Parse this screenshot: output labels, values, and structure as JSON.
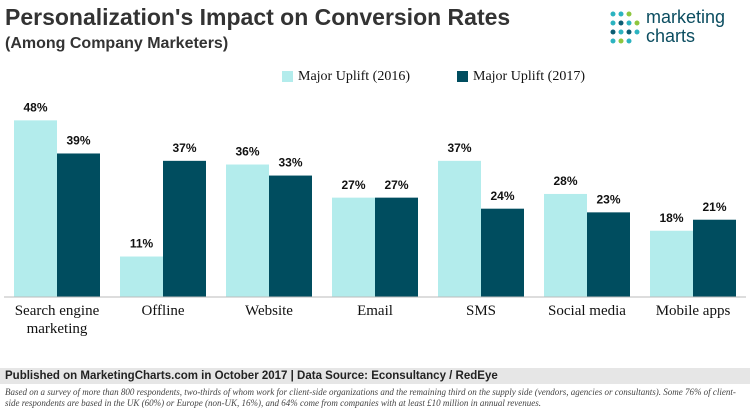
{
  "chart_data": {
    "type": "bar",
    "title": "Personalization's Impact on Conversion Rates",
    "subtitle": "(Among Company Marketers)",
    "categories": [
      "Search engine marketing",
      "Offline",
      "Website",
      "Email",
      "SMS",
      "Social media",
      "Mobile apps"
    ],
    "series": [
      {
        "name": "Major Uplift (2016)",
        "color": "#b3ecec",
        "values": [
          48,
          11,
          36,
          27,
          37,
          28,
          18
        ],
        "value_labels": [
          "48%",
          "11%",
          "36%",
          "27%",
          "37%",
          "28%",
          "18%"
        ]
      },
      {
        "name": "Major Uplift (2017)",
        "color": "#004d5f",
        "values": [
          39,
          37,
          33,
          27,
          24,
          23,
          21
        ],
        "value_labels": [
          "39%",
          "37%",
          "33%",
          "27%",
          "24%",
          "23%",
          "21%"
        ]
      }
    ],
    "ylim": [
      0,
      50
    ],
    "logo": [
      "marketing",
      "charts"
    ],
    "source": "Published on MarketingCharts.com in October 2017 | Data Source: Econsultancy / RedEye",
    "note": "Based on a survey of more than 800 respondents, two-thirds of whom work for client-side organizations and the remaining third on the supply side (vendors, agencies or consultants). Some 76% of client-side respondents are based in the UK (60%) or Europe (non-UK, 16%), and 64% come from companies with at least £10 million in annual revenues."
  }
}
